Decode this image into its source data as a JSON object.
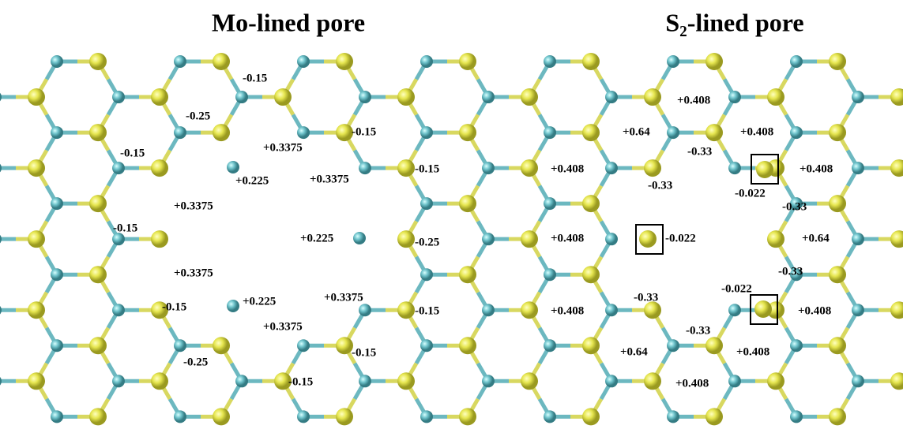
{
  "titles": [
    "Mo-lined pore",
    "S₂-lined pore"
  ],
  "labels": [
    "-0.15",
    "-0.25",
    "-0.15",
    "+0.3375",
    "-0.15",
    "+0.225",
    "+0.3375",
    "-0.15",
    "+0.3375",
    "-0.15",
    "+0.225",
    "-0.25",
    "+0.3375",
    "-0.15",
    "+0.225",
    "+0.3375",
    "-0.15",
    "+0.3375",
    "-0.25",
    "-0.15",
    "-0.15",
    "+0.408",
    "+0.64",
    "+0.408",
    "-0.33",
    "+0.408",
    "-0.33",
    "+0.408",
    "-0.022",
    "-0.33",
    "+0.408",
    "-0.022",
    "+0.64",
    "-0.33",
    "-0.022",
    "-0.33",
    "+0.408",
    "+0.408",
    "-0.33",
    "+0.64",
    "+0.408",
    "+0.408"
  ]
}
